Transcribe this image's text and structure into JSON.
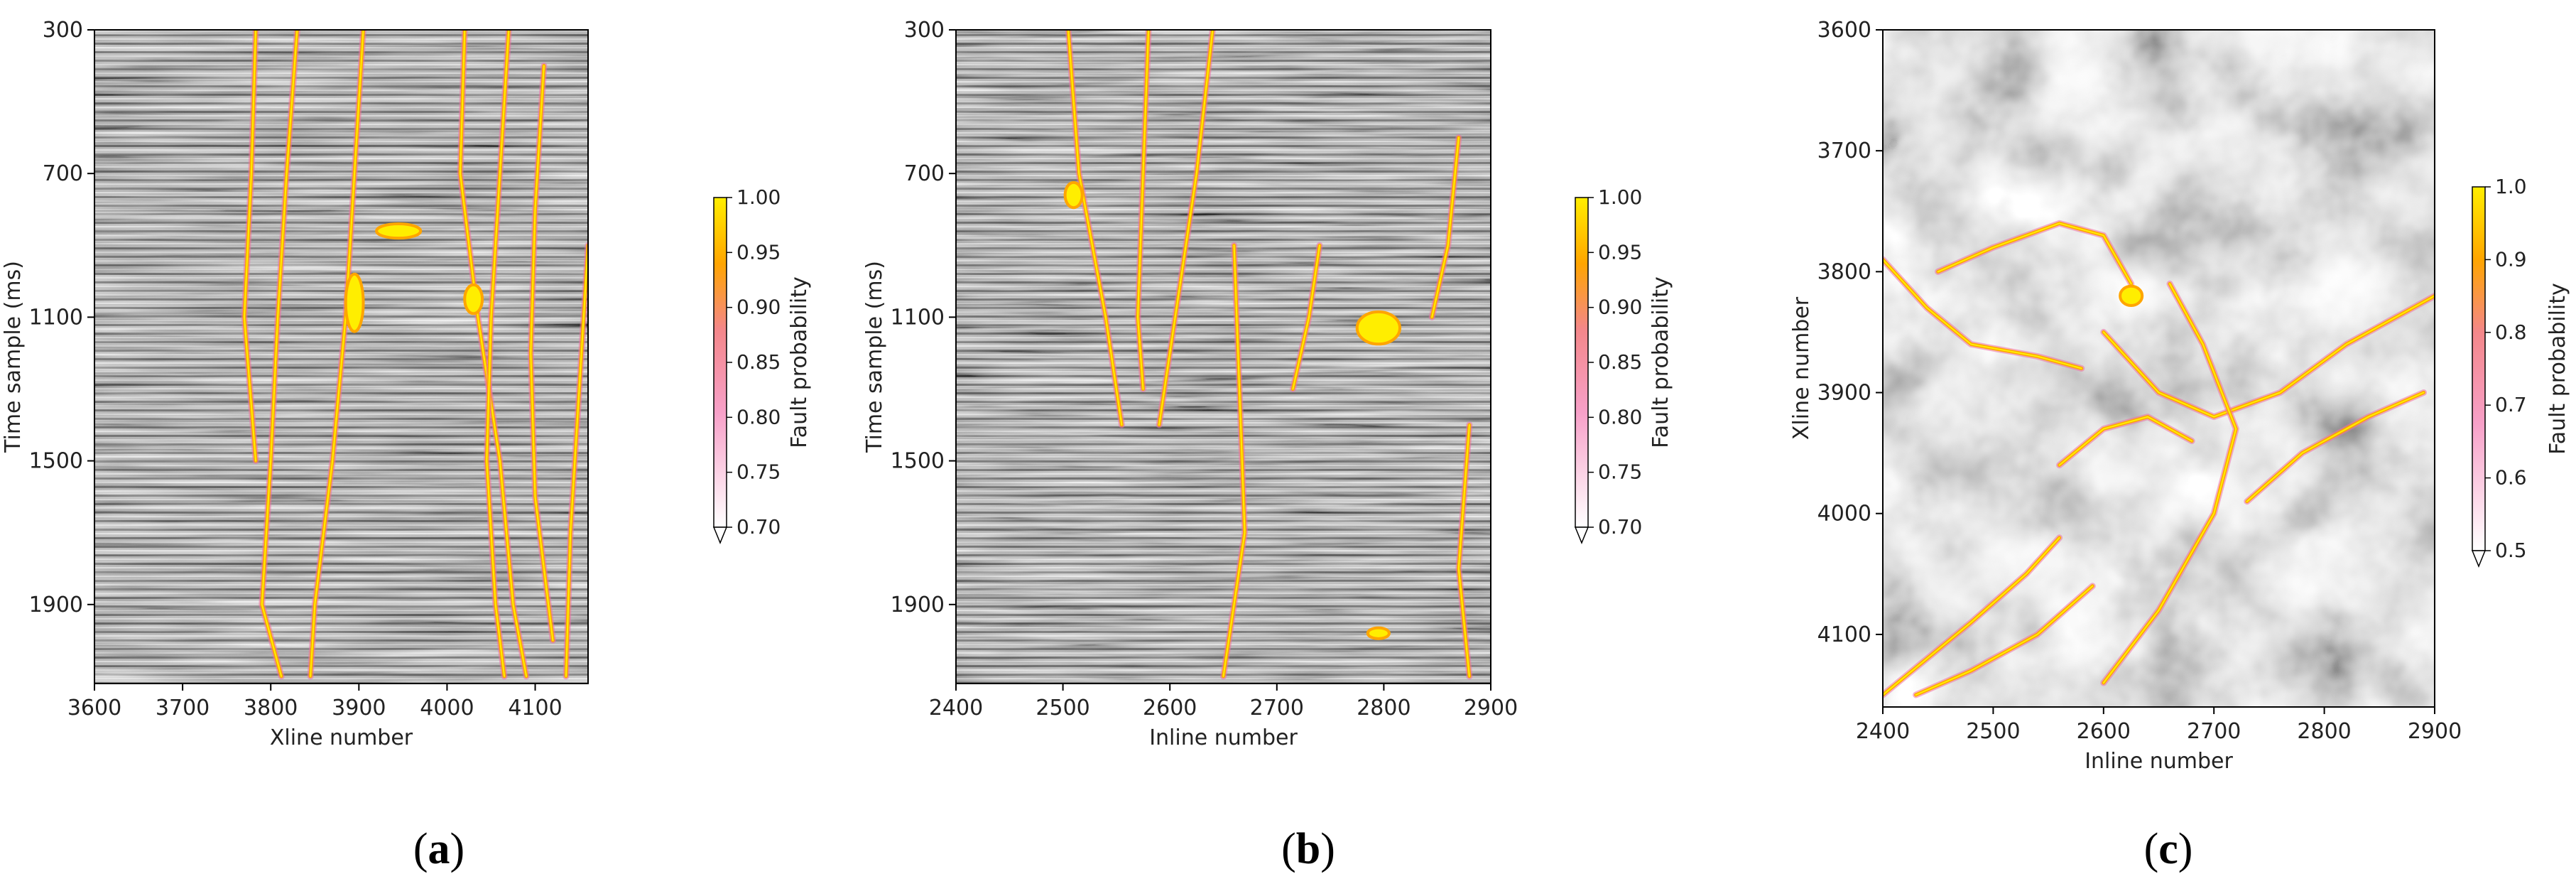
{
  "figure": {
    "captions": [
      "a",
      "b",
      "c"
    ],
    "paren_open": "(",
    "paren_close": ")"
  },
  "colors": {
    "fault_low": "#ffffff",
    "fault_mid": "#f06fa0",
    "fault_orange": "#ffa500",
    "fault_high": "#ffee00",
    "seismic_dark": "#2a2a2a",
    "seismic_light": "#e8e8e8"
  },
  "chart_data": [
    {
      "type": "heatmap",
      "panel": "a",
      "description_kind": "seismic vertical section with fault probability overlay",
      "xlabel": "Xline number",
      "ylabel": "Time sample (ms)",
      "xlim": [
        3600,
        4160
      ],
      "ylim": [
        2120,
        300
      ],
      "x_ticks": [
        3600,
        3700,
        3800,
        3900,
        4000,
        4100
      ],
      "y_ticks": [
        300,
        700,
        1100,
        1500,
        1900
      ],
      "colorbar": {
        "label": "Fault probability",
        "range": [
          0.7,
          1.0
        ],
        "ticks": [
          "0.70",
          "0.75",
          "0.80",
          "0.85",
          "0.90",
          "0.95",
          "1.00"
        ],
        "extend": "min"
      },
      "faults": [
        {
          "name": "fault-a1",
          "points": [
            [
              3783,
              300
            ],
            [
              3778,
              700
            ],
            [
              3770,
              1100
            ],
            [
              3783,
              1500
            ]
          ]
        },
        {
          "name": "fault-a2",
          "points": [
            [
              3830,
              300
            ],
            [
              3818,
              700
            ],
            [
              3808,
              1100
            ],
            [
              3800,
              1500
            ],
            [
              3790,
              1900
            ],
            [
              3812,
              2100
            ]
          ]
        },
        {
          "name": "fault-a3",
          "points": [
            [
              3905,
              300
            ],
            [
              3895,
              700
            ],
            [
              3885,
              1100
            ],
            [
              3870,
              1500
            ],
            [
              3850,
              1900
            ],
            [
              3845,
              2100
            ]
          ]
        },
        {
          "name": "fault-a4",
          "points": [
            [
              4020,
              300
            ],
            [
              4015,
              700
            ],
            [
              4035,
              1100
            ],
            [
              4060,
              1500
            ],
            [
              4075,
              1900
            ],
            [
              4090,
              2100
            ]
          ]
        },
        {
          "name": "fault-a5",
          "points": [
            [
              4070,
              300
            ],
            [
              4060,
              700
            ],
            [
              4050,
              1100
            ],
            [
              4045,
              1500
            ],
            [
              4055,
              1900
            ],
            [
              4065,
              2100
            ]
          ]
        },
        {
          "name": "fault-a6",
          "points": [
            [
              4110,
              400
            ],
            [
              4100,
              800
            ],
            [
              4095,
              1200
            ],
            [
              4100,
              1600
            ],
            [
              4120,
              2000
            ]
          ]
        },
        {
          "name": "fault-a7",
          "points": [
            [
              4160,
              900
            ],
            [
              4150,
              1300
            ],
            [
              4140,
              1700
            ],
            [
              4135,
              2100
            ]
          ]
        }
      ],
      "blobs": [
        {
          "name": "blob-a1",
          "x": 3895,
          "y": 1060,
          "rx": 10,
          "ry": 80
        },
        {
          "name": "blob-a2",
          "x": 3945,
          "y": 860,
          "rx": 25,
          "ry": 20
        },
        {
          "name": "blob-a3",
          "x": 4030,
          "y": 1050,
          "rx": 10,
          "ry": 40
        }
      ]
    },
    {
      "type": "heatmap",
      "panel": "b",
      "description_kind": "seismic vertical section with fault probability overlay",
      "xlabel": "Inline number",
      "ylabel": "Time sample (ms)",
      "xlim": [
        2400,
        2900
      ],
      "ylim": [
        2120,
        300
      ],
      "x_ticks": [
        2400,
        2500,
        2600,
        2700,
        2800,
        2900
      ],
      "y_ticks": [
        300,
        700,
        1100,
        1500,
        1900
      ],
      "colorbar": {
        "label": "Fault probability",
        "range": [
          0.7,
          1.0
        ],
        "ticks": [
          "0.70",
          "0.75",
          "0.80",
          "0.85",
          "0.90",
          "0.95",
          "1.00"
        ],
        "extend": "min"
      },
      "faults": [
        {
          "name": "fault-b1",
          "points": [
            [
              2505,
              300
            ],
            [
              2515,
              700
            ],
            [
              2540,
              1100
            ],
            [
              2555,
              1400
            ]
          ]
        },
        {
          "name": "fault-b2",
          "points": [
            [
              2580,
              300
            ],
            [
              2575,
              700
            ],
            [
              2570,
              1100
            ],
            [
              2575,
              1300
            ]
          ]
        },
        {
          "name": "fault-b3",
          "points": [
            [
              2640,
              300
            ],
            [
              2625,
              700
            ],
            [
              2605,
              1100
            ],
            [
              2590,
              1400
            ]
          ]
        },
        {
          "name": "fault-b4",
          "points": [
            [
              2660,
              900
            ],
            [
              2665,
              1300
            ],
            [
              2670,
              1700
            ],
            [
              2650,
              2100
            ]
          ]
        },
        {
          "name": "fault-b5",
          "points": [
            [
              2740,
              900
            ],
            [
              2730,
              1100
            ],
            [
              2715,
              1300
            ]
          ]
        },
        {
          "name": "fault-b6",
          "points": [
            [
              2870,
              600
            ],
            [
              2860,
              900
            ],
            [
              2845,
              1100
            ]
          ]
        },
        {
          "name": "fault-b7",
          "points": [
            [
              2880,
              1400
            ],
            [
              2870,
              1800
            ],
            [
              2880,
              2100
            ]
          ]
        }
      ],
      "blobs": [
        {
          "name": "blob-b1",
          "x": 2795,
          "y": 1130,
          "rx": 20,
          "ry": 45
        },
        {
          "name": "blob-b2",
          "x": 2510,
          "y": 760,
          "rx": 8,
          "ry": 35
        },
        {
          "name": "blob-b3",
          "x": 2795,
          "y": 1980,
          "rx": 10,
          "ry": 15
        }
      ]
    },
    {
      "type": "heatmap",
      "panel": "c",
      "description_kind": "seismic time slice with fault probability overlay",
      "xlabel": "Inline number",
      "ylabel": "Xline number",
      "xlim": [
        2400,
        2900
      ],
      "ylim": [
        4160,
        3600
      ],
      "x_ticks": [
        2400,
        2500,
        2600,
        2700,
        2800,
        2900
      ],
      "y_ticks": [
        3600,
        3700,
        3800,
        3900,
        4000,
        4100
      ],
      "colorbar": {
        "label": "Fault probability",
        "range": [
          0.5,
          1.0
        ],
        "ticks": [
          "0.5",
          "0.6",
          "0.7",
          "0.8",
          "0.9",
          "1.0"
        ],
        "extend": "min"
      },
      "faults": [
        {
          "name": "fault-c1",
          "points": [
            [
              2400,
              3790
            ],
            [
              2440,
              3830
            ],
            [
              2480,
              3860
            ],
            [
              2540,
              3870
            ],
            [
              2580,
              3880
            ]
          ]
        },
        {
          "name": "fault-c2",
          "points": [
            [
              2450,
              3800
            ],
            [
              2500,
              3780
            ],
            [
              2560,
              3760
            ],
            [
              2600,
              3770
            ],
            [
              2625,
              3810
            ]
          ]
        },
        {
          "name": "fault-c3",
          "points": [
            [
              2600,
              3850
            ],
            [
              2650,
              3900
            ],
            [
              2700,
              3920
            ],
            [
              2760,
              3900
            ],
            [
              2820,
              3860
            ],
            [
              2900,
              3820
            ]
          ]
        },
        {
          "name": "fault-c4",
          "points": [
            [
              2660,
              3810
            ],
            [
              2690,
              3860
            ],
            [
              2720,
              3930
            ],
            [
              2700,
              4000
            ],
            [
              2650,
              4080
            ],
            [
              2600,
              4140
            ]
          ]
        },
        {
          "name": "fault-c5",
          "points": [
            [
              2400,
              4150
            ],
            [
              2440,
              4120
            ],
            [
              2480,
              4090
            ],
            [
              2530,
              4050
            ],
            [
              2560,
              4020
            ]
          ]
        },
        {
          "name": "fault-c6",
          "points": [
            [
              2430,
              4150
            ],
            [
              2480,
              4130
            ],
            [
              2540,
              4100
            ],
            [
              2590,
              4060
            ]
          ]
        },
        {
          "name": "fault-c7",
          "points": [
            [
              2730,
              3990
            ],
            [
              2780,
              3950
            ],
            [
              2840,
              3920
            ],
            [
              2890,
              3900
            ]
          ]
        },
        {
          "name": "fault-c8",
          "points": [
            [
              2560,
              3960
            ],
            [
              2600,
              3930
            ],
            [
              2640,
              3920
            ],
            [
              2680,
              3940
            ]
          ]
        }
      ],
      "blobs": [
        {
          "name": "blob-c1",
          "x": 2625,
          "y": 3820,
          "rx": 10,
          "ry": 8
        }
      ]
    }
  ]
}
